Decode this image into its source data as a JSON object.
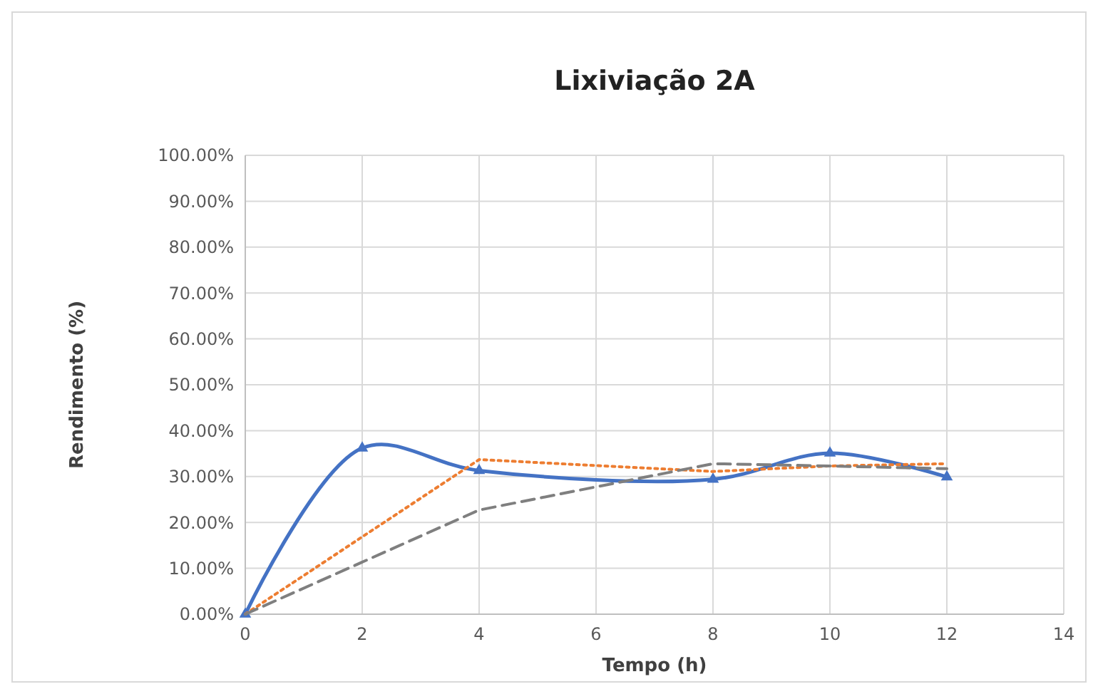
{
  "chart_data": {
    "type": "line",
    "title": "Lixiviação 2A",
    "xlabel": "Tempo (h)",
    "ylabel": "Rendimento (%)",
    "xlim": [
      0,
      14
    ],
    "xticks": [
      0,
      2,
      4,
      6,
      8,
      10,
      12,
      14
    ],
    "ylim": [
      0,
      100
    ],
    "yticks": [
      {
        "value": 0,
        "label": "0.00%"
      },
      {
        "value": 10,
        "label": "10.00%"
      },
      {
        "value": 20,
        "label": "20.00%"
      },
      {
        "value": 30,
        "label": "30.00%"
      },
      {
        "value": 40,
        "label": "40.00%"
      },
      {
        "value": 50,
        "label": "50.00%"
      },
      {
        "value": 60,
        "label": "60.00%"
      },
      {
        "value": 70,
        "label": "70.00%"
      },
      {
        "value": 80,
        "label": "80.00%"
      },
      {
        "value": 90,
        "label": "90.00%"
      },
      {
        "value": 100,
        "label": "100.00%"
      }
    ],
    "grid": true,
    "series": [
      {
        "color": "#4472c4",
        "x": [
          0,
          2,
          4,
          8,
          10,
          12
        ],
        "values": [
          0,
          36.2,
          31.3,
          29.4,
          35.1,
          29.9
        ],
        "marker": "triangle",
        "line_style": "solid"
      },
      {
        "color": "#ed7d31",
        "x": [
          0,
          4,
          8,
          10,
          12
        ],
        "values": [
          0,
          33.7,
          31.1,
          32.3,
          32.8
        ],
        "marker": "none",
        "line_style": "dotted"
      },
      {
        "color": "#7f7f7f",
        "x": [
          0,
          4,
          8,
          10,
          12
        ],
        "values": [
          0,
          22.7,
          32.8,
          32.3,
          31.7
        ],
        "marker": "none",
        "line_style": "dashed"
      }
    ]
  }
}
